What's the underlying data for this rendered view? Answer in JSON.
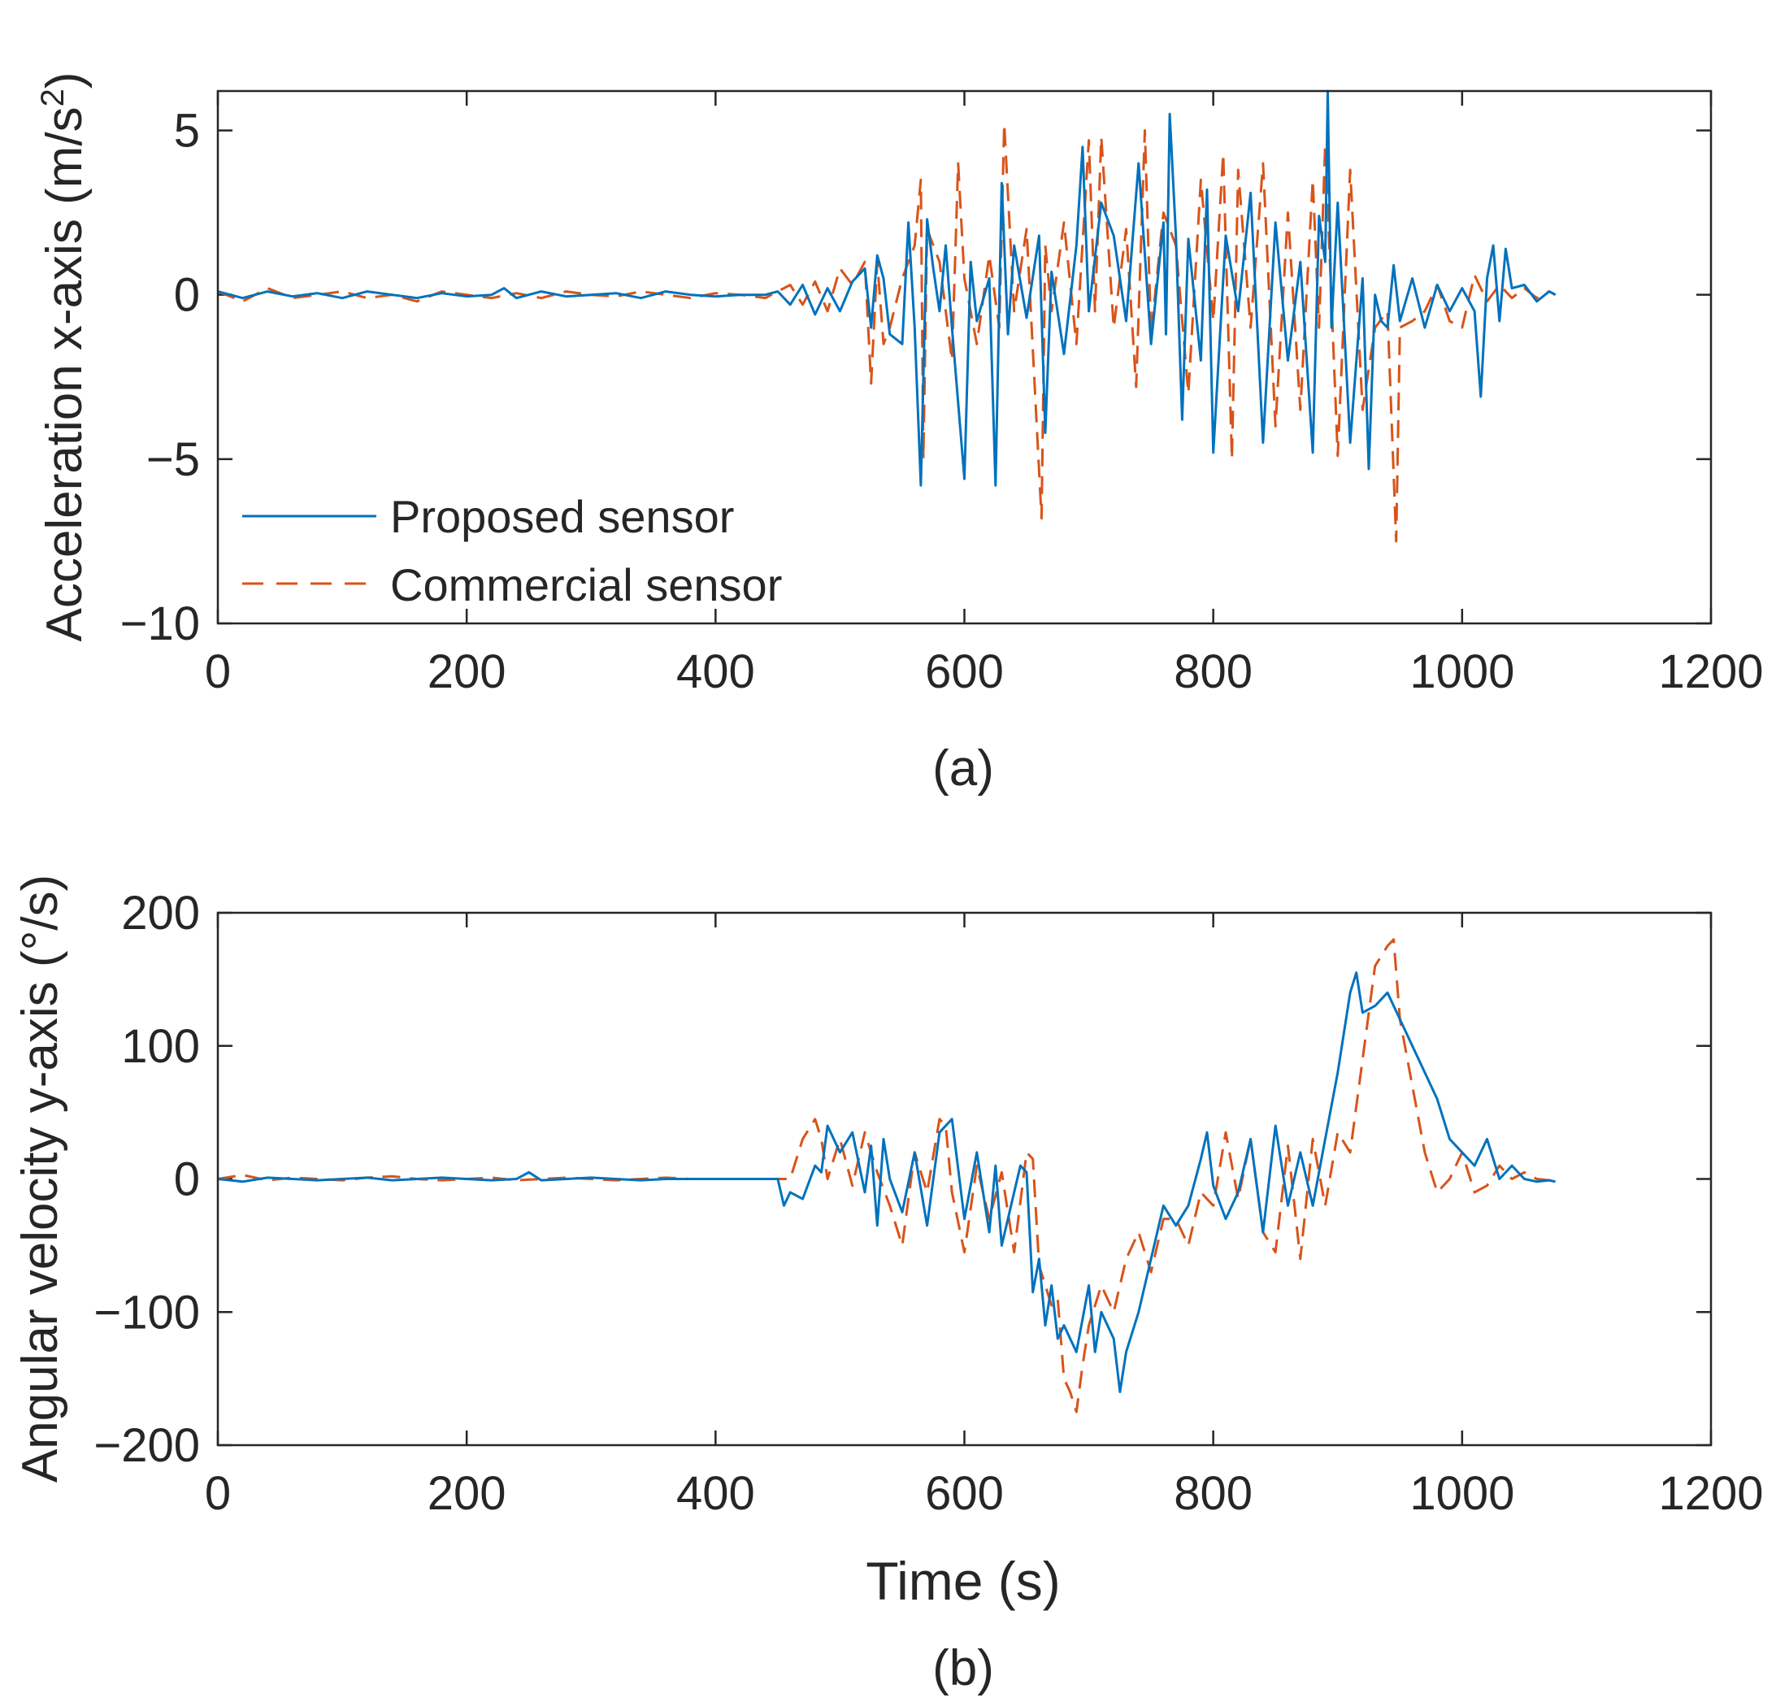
{
  "chart_data": [
    {
      "type": "line",
      "panel_label": "(a)",
      "title": "",
      "xlabel": "",
      "ylabel": "Acceleration x-axis (m/s",
      "ylabel_sup": "2",
      "ylabel_close": ")",
      "xlim": [
        0,
        1200
      ],
      "ylim": [
        -10,
        6.2
      ],
      "xticks": [
        0,
        200,
        400,
        600,
        800,
        1000,
        1200
      ],
      "xtick_labels": [
        "0",
        "200",
        "400",
        "600",
        "800",
        "1000",
        "1200"
      ],
      "yticks": [
        -10,
        -5,
        0,
        5
      ],
      "ytick_labels": [
        "−10",
        "−5",
        "0",
        "5"
      ],
      "legend": {
        "placement": "bottom-left",
        "entries": [
          "Proposed sensor",
          "Commercial sensor"
        ]
      },
      "series": [
        {
          "name": "Proposed sensor",
          "style": "solid",
          "color": "#0072BD",
          "x": [
            0,
            20,
            40,
            60,
            80,
            100,
            120,
            140,
            160,
            180,
            200,
            220,
            230,
            240,
            260,
            280,
            300,
            320,
            340,
            360,
            380,
            400,
            420,
            440,
            450,
            460,
            470,
            480,
            490,
            500,
            510,
            520,
            525,
            530,
            535,
            540,
            550,
            555,
            560,
            565,
            570,
            575,
            580,
            585,
            590,
            600,
            605,
            610,
            620,
            625,
            630,
            635,
            640,
            650,
            660,
            665,
            670,
            680,
            690,
            695,
            700,
            710,
            720,
            730,
            740,
            750,
            760,
            762,
            765,
            770,
            775,
            780,
            790,
            795,
            800,
            810,
            820,
            830,
            840,
            850,
            860,
            870,
            880,
            885,
            890,
            892,
            895,
            900,
            910,
            920,
            925,
            930,
            935,
            940,
            945,
            950,
            960,
            970,
            980,
            990,
            1000,
            1010,
            1015,
            1020,
            1025,
            1030,
            1035,
            1040,
            1050,
            1060,
            1070,
            1075
          ],
          "y": [
            0.1,
            -0.1,
            0.1,
            -0.05,
            0.05,
            -0.1,
            0.1,
            0.0,
            -0.1,
            0.05,
            -0.05,
            0.0,
            0.2,
            -0.1,
            0.1,
            -0.05,
            0.0,
            0.05,
            -0.1,
            0.1,
            0.0,
            -0.05,
            0.0,
            0.0,
            0.1,
            -0.3,
            0.3,
            -0.6,
            0.2,
            -0.5,
            0.4,
            0.8,
            -1.0,
            1.2,
            0.5,
            -1.2,
            -1.5,
            2.2,
            -1.0,
            -5.8,
            2.3,
            0.8,
            -0.5,
            1.5,
            -1.0,
            -5.6,
            1.0,
            -0.8,
            0.5,
            -5.8,
            3.4,
            -1.2,
            1.5,
            -0.7,
            1.8,
            -4.2,
            0.7,
            -1.8,
            1.5,
            4.5,
            -0.5,
            2.8,
            1.8,
            -0.8,
            4.0,
            -1.5,
            2.2,
            -1.2,
            5.5,
            1.8,
            -3.8,
            1.7,
            -2.0,
            3.2,
            -4.8,
            1.8,
            -0.5,
            3.1,
            -4.5,
            2.2,
            -2.0,
            1.0,
            -4.8,
            2.4,
            1.0,
            6.2,
            -1.0,
            2.8,
            -4.5,
            0.5,
            -5.3,
            0.0,
            -0.8,
            -1.0,
            0.9,
            -0.8,
            0.5,
            -1.0,
            0.3,
            -0.5,
            0.2,
            -0.5,
            -3.1,
            0.5,
            1.5,
            -0.8,
            1.4,
            0.2,
            0.3,
            -0.2,
            0.1,
            0.0
          ]
        },
        {
          "name": "Commercial sensor",
          "style": "dashed",
          "color": "#D95319",
          "x": [
            0,
            20,
            40,
            60,
            80,
            100,
            120,
            140,
            160,
            180,
            200,
            220,
            240,
            260,
            280,
            300,
            320,
            340,
            360,
            380,
            400,
            420,
            440,
            460,
            470,
            480,
            490,
            500,
            510,
            520,
            525,
            530,
            535,
            540,
            550,
            560,
            565,
            567,
            570,
            580,
            590,
            595,
            600,
            610,
            620,
            628,
            632,
            640,
            650,
            662,
            665,
            670,
            680,
            690,
            700,
            705,
            710,
            720,
            730,
            738,
            745,
            750,
            760,
            770,
            780,
            790,
            800,
            808,
            815,
            820,
            830,
            840,
            850,
            860,
            870,
            880,
            885,
            890,
            900,
            910,
            920,
            930,
            940,
            947,
            950,
            960,
            970,
            980,
            990,
            1000,
            1010,
            1020,
            1030,
            1040,
            1050,
            1060,
            1070,
            1075
          ],
          "y": [
            0.1,
            -0.2,
            0.2,
            -0.1,
            0.0,
            0.1,
            -0.1,
            0.0,
            -0.2,
            0.1,
            0.0,
            -0.1,
            0.05,
            -0.1,
            0.1,
            0.0,
            -0.05,
            0.1,
            0.0,
            -0.1,
            0.05,
            0.0,
            -0.1,
            0.3,
            -0.3,
            0.4,
            -0.5,
            0.8,
            0.3,
            1.0,
            -2.7,
            1.0,
            -1.5,
            -1.0,
            0.5,
            1.5,
            3.5,
            -5.0,
            2.0,
            1.0,
            -2.0,
            4.0,
            0.5,
            -1.5,
            1.2,
            -1.0,
            5.2,
            -0.5,
            2.0,
            -6.8,
            1.5,
            -0.5,
            2.2,
            -1.5,
            4.7,
            -0.5,
            4.8,
            -1.0,
            2.0,
            -2.8,
            5.0,
            -1.2,
            2.5,
            1.5,
            -3.0,
            3.5,
            -0.8,
            4.3,
            -5.0,
            3.8,
            -1.0,
            4.0,
            -4.0,
            2.5,
            -3.5,
            3.5,
            -1.0,
            4.6,
            -4.9,
            3.8,
            -3.5,
            -1.0,
            -0.5,
            -7.5,
            -1.0,
            -0.8,
            -0.5,
            0.3,
            -0.8,
            -1.0,
            0.6,
            -0.2,
            0.3,
            -0.1,
            0.2,
            -0.1,
            0.1,
            0.0
          ]
        }
      ]
    },
    {
      "type": "line",
      "panel_label": "(b)",
      "title": "",
      "xlabel": "Time (s)",
      "ylabel": "Angular velocity y-axis (°/s)",
      "xlim": [
        0,
        1200
      ],
      "ylim": [
        -200,
        200
      ],
      "xticks": [
        0,
        200,
        400,
        600,
        800,
        1000,
        1200
      ],
      "xtick_labels": [
        "0",
        "200",
        "400",
        "600",
        "800",
        "1000",
        "1200"
      ],
      "yticks": [
        -200,
        -100,
        0,
        100,
        200
      ],
      "ytick_labels": [
        "−200",
        "−100",
        "0",
        "100",
        "200"
      ],
      "series": [
        {
          "name": "Proposed sensor",
          "style": "solid",
          "color": "#0072BD",
          "x": [
            0,
            20,
            40,
            60,
            80,
            100,
            120,
            140,
            160,
            180,
            200,
            220,
            240,
            250,
            260,
            280,
            300,
            320,
            340,
            360,
            380,
            400,
            420,
            440,
            450,
            455,
            460,
            470,
            480,
            485,
            490,
            500,
            510,
            520,
            525,
            530,
            535,
            540,
            550,
            560,
            570,
            580,
            590,
            600,
            610,
            620,
            625,
            630,
            640,
            645,
            650,
            655,
            660,
            665,
            670,
            675,
            680,
            690,
            700,
            705,
            710,
            720,
            725,
            730,
            740,
            750,
            760,
            770,
            780,
            790,
            795,
            800,
            810,
            820,
            830,
            840,
            850,
            860,
            870,
            880,
            890,
            900,
            910,
            915,
            920,
            930,
            940,
            950,
            960,
            970,
            980,
            990,
            1000,
            1010,
            1020,
            1030,
            1040,
            1050,
            1060,
            1070,
            1075
          ],
          "y": [
            0,
            -2,
            1,
            0,
            -1,
            0,
            1,
            -1,
            0,
            1,
            0,
            -1,
            0,
            5,
            -1,
            0,
            1,
            0,
            -1,
            0,
            0,
            0,
            0,
            0,
            0,
            -20,
            -10,
            -15,
            10,
            5,
            40,
            20,
            35,
            -10,
            25,
            -35,
            30,
            0,
            -25,
            20,
            -35,
            35,
            45,
            -30,
            20,
            -40,
            10,
            -50,
            -10,
            10,
            5,
            -85,
            -60,
            -110,
            -80,
            -120,
            -110,
            -130,
            -80,
            -130,
            -100,
            -120,
            -160,
            -130,
            -100,
            -60,
            -20,
            -35,
            -20,
            15,
            35,
            -5,
            -30,
            -10,
            30,
            -40,
            40,
            -20,
            20,
            -20,
            30,
            80,
            140,
            155,
            125,
            130,
            140,
            120,
            100,
            80,
            60,
            30,
            20,
            10,
            30,
            0,
            10,
            0,
            -2,
            -1,
            -2
          ]
        },
        {
          "name": "Commercial sensor",
          "style": "dashed",
          "color": "#D95319",
          "x": [
            0,
            20,
            40,
            60,
            80,
            100,
            120,
            140,
            160,
            180,
            200,
            220,
            240,
            260,
            280,
            300,
            320,
            340,
            360,
            380,
            400,
            420,
            440,
            460,
            470,
            480,
            485,
            490,
            500,
            510,
            520,
            530,
            540,
            550,
            560,
            570,
            580,
            585,
            590,
            600,
            610,
            620,
            630,
            640,
            650,
            655,
            660,
            670,
            675,
            680,
            685,
            690,
            695,
            700,
            710,
            720,
            730,
            740,
            750,
            760,
            770,
            780,
            790,
            800,
            810,
            820,
            830,
            840,
            850,
            860,
            870,
            880,
            890,
            900,
            910,
            920,
            930,
            940,
            945,
            950,
            960,
            970,
            980,
            990,
            1000,
            1010,
            1020,
            1030,
            1040,
            1050,
            1060,
            1070,
            1075
          ],
          "y": [
            0,
            3,
            -1,
            1,
            0,
            -1,
            1,
            2,
            0,
            -1,
            0,
            1,
            -1,
            0,
            1,
            0,
            -1,
            0,
            1,
            0,
            0,
            0,
            0,
            0,
            30,
            45,
            30,
            0,
            30,
            -5,
            35,
            5,
            -20,
            -50,
            20,
            -10,
            45,
            40,
            -10,
            -55,
            10,
            -30,
            5,
            -55,
            20,
            15,
            -65,
            -95,
            -90,
            -150,
            -160,
            -175,
            -140,
            -110,
            -80,
            -100,
            -60,
            -40,
            -70,
            -30,
            -30,
            -50,
            -10,
            -20,
            35,
            -15,
            30,
            -40,
            -55,
            25,
            -60,
            30,
            -20,
            35,
            20,
            90,
            160,
            175,
            180,
            120,
            70,
            20,
            -10,
            0,
            20,
            -10,
            -5,
            10,
            0,
            5,
            0,
            -1,
            -2
          ]
        }
      ]
    }
  ]
}
